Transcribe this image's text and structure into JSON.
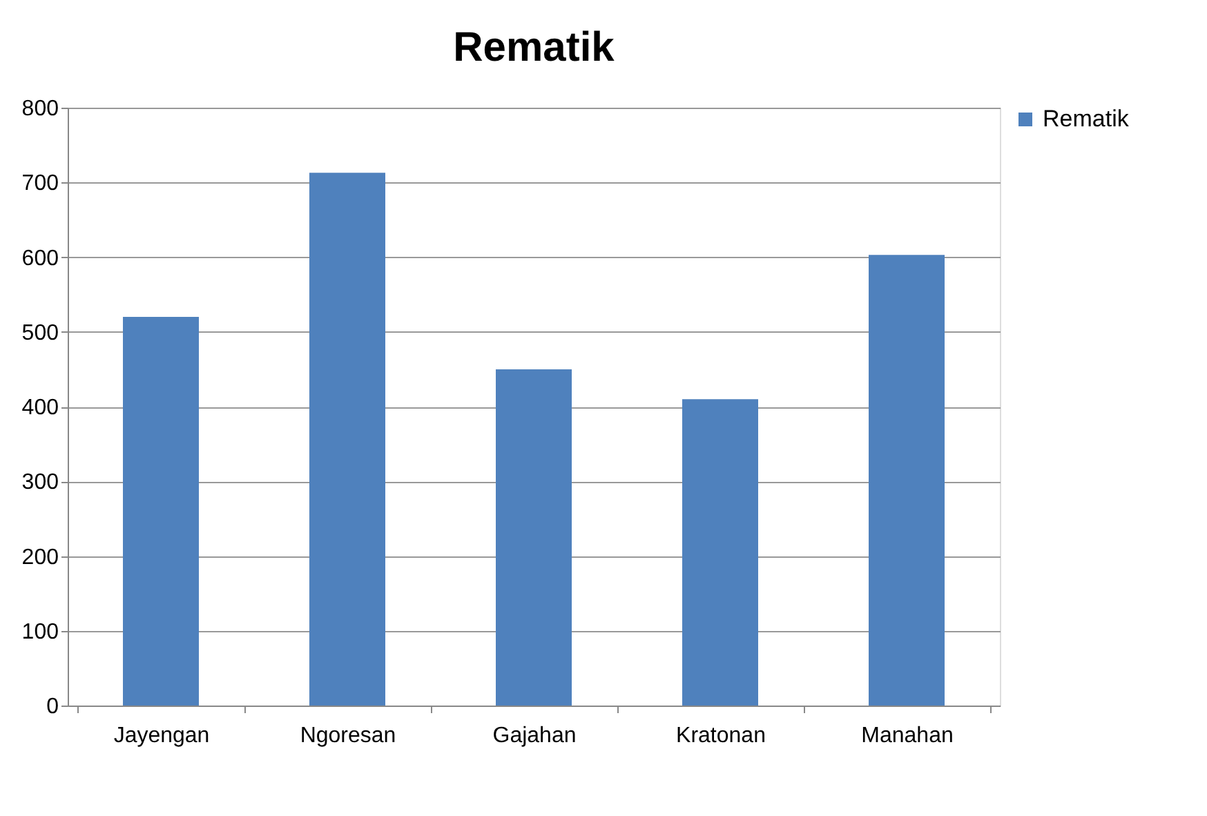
{
  "chart_data": {
    "type": "bar",
    "title": "Rematik",
    "categories": [
      "Jayengan",
      "Ngoresan",
      "Gajahan",
      "Kratonan",
      "Manahan"
    ],
    "series": [
      {
        "name": "Rematik",
        "color": "#4f81bd",
        "values": [
          520,
          713,
          450,
          410,
          603
        ]
      }
    ],
    "ylim": [
      0,
      800
    ],
    "yticks": [
      0,
      100,
      200,
      300,
      400,
      500,
      600,
      700,
      800
    ],
    "grid": "y",
    "legend": "right"
  }
}
